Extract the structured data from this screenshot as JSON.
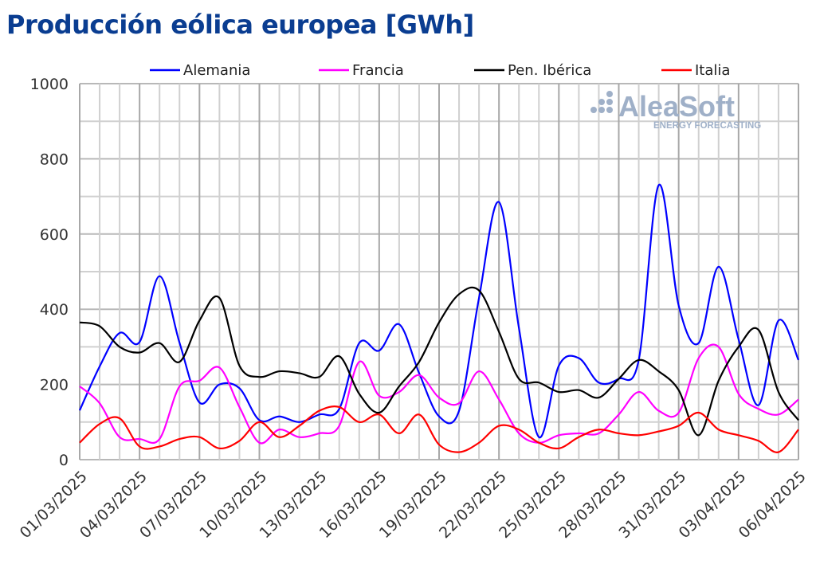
{
  "chart_data": {
    "type": "line",
    "title": "Producción eólica europea [GWh]",
    "ylim": [
      0,
      1000
    ],
    "yticks": [
      0,
      200,
      400,
      600,
      800,
      1000
    ],
    "grid": true,
    "legend_position": "top",
    "watermark": {
      "brand": "AleaSoft",
      "tagline": "ENERGY FORECASTING"
    },
    "x": [
      "01/03/2025",
      "02/03/2025",
      "03/03/2025",
      "04/03/2025",
      "05/03/2025",
      "06/03/2025",
      "07/03/2025",
      "08/03/2025",
      "09/03/2025",
      "10/03/2025",
      "11/03/2025",
      "12/03/2025",
      "13/03/2025",
      "14/03/2025",
      "15/03/2025",
      "16/03/2025",
      "17/03/2025",
      "18/03/2025",
      "19/03/2025",
      "20/03/2025",
      "21/03/2025",
      "22/03/2025",
      "23/03/2025",
      "24/03/2025",
      "25/03/2025",
      "26/03/2025",
      "27/03/2025",
      "28/03/2025",
      "29/03/2025",
      "30/03/2025",
      "31/03/2025",
      "01/04/2025",
      "02/04/2025",
      "03/04/2025",
      "04/04/2025",
      "05/04/2025",
      "06/04/2025"
    ],
    "xtick_labels": [
      "01/03/2025",
      "04/03/2025",
      "07/03/2025",
      "10/03/2025",
      "13/03/2025",
      "16/03/2025",
      "19/03/2025",
      "22/03/2025",
      "25/03/2025",
      "28/03/2025",
      "31/03/2025",
      "03/04/2025",
      "06/04/2025"
    ],
    "series": [
      {
        "name": "Alemania",
        "color": "#0000ff",
        "values": [
          131,
          248,
          337,
          313,
          488,
          311,
          152,
          200,
          190,
          105,
          115,
          100,
          120,
          135,
          310,
          290,
          360,
          230,
          115,
          130,
          430,
          685,
          350,
          60,
          250,
          270,
          205,
          215,
          265,
          730,
          410,
          310,
          513,
          320,
          145,
          370,
          265
        ]
      },
      {
        "name": "Francia",
        "color": "#ff00ff",
        "values": [
          195,
          150,
          60,
          55,
          55,
          195,
          210,
          245,
          140,
          45,
          80,
          60,
          70,
          90,
          260,
          170,
          180,
          225,
          165,
          150,
          235,
          160,
          70,
          45,
          65,
          70,
          70,
          120,
          180,
          130,
          125,
          270,
          300,
          175,
          135,
          120,
          160
        ]
      },
      {
        "name": "Pen. Ibérica",
        "color": "#000000",
        "values": [
          365,
          355,
          300,
          285,
          310,
          260,
          370,
          430,
          250,
          220,
          235,
          230,
          220,
          275,
          175,
          125,
          195,
          260,
          365,
          440,
          450,
          340,
          215,
          205,
          180,
          185,
          165,
          215,
          265,
          235,
          185,
          65,
          210,
          300,
          345,
          180,
          105
        ]
      },
      {
        "name": "Italia",
        "color": "#ff0000",
        "values": [
          45,
          95,
          110,
          35,
          35,
          55,
          60,
          30,
          50,
          100,
          60,
          90,
          130,
          140,
          100,
          120,
          70,
          120,
          40,
          20,
          45,
          90,
          80,
          45,
          30,
          60,
          80,
          70,
          65,
          75,
          90,
          125,
          80,
          65,
          50,
          20,
          80
        ]
      }
    ]
  }
}
